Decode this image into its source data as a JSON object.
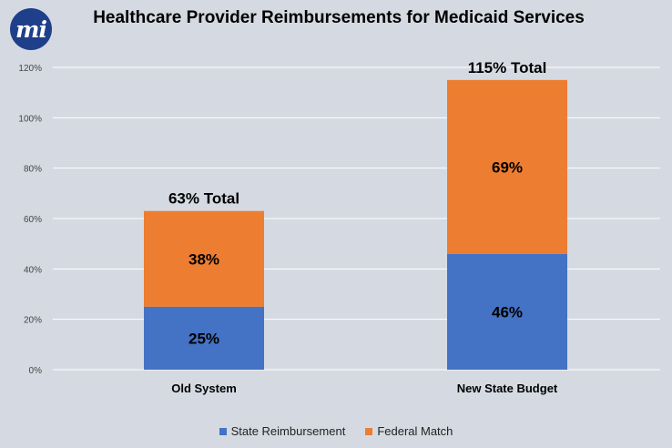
{
  "logo": {
    "text": "mi"
  },
  "chart_data": {
    "type": "bar",
    "stacked": true,
    "title": "Healthcare Provider Reimbursements for Medicaid Services",
    "xlabel": "",
    "ylabel": "",
    "categories": [
      "Old System",
      "New State Budget"
    ],
    "series": [
      {
        "name": "State Reimbursement",
        "values": [
          25,
          46
        ],
        "labels": [
          "25%",
          "46%"
        ],
        "color": "#4472c4"
      },
      {
        "name": "Federal Match",
        "values": [
          38,
          69
        ],
        "labels": [
          "38%",
          "69%"
        ],
        "color": "#ed7d31"
      }
    ],
    "totals": [
      "63% Total",
      "115% Total"
    ],
    "ylim": [
      0,
      120
    ],
    "yticks": [
      0,
      20,
      40,
      60,
      80,
      100,
      120
    ],
    "ytick_labels": [
      "0%",
      "20%",
      "40%",
      "60%",
      "80%",
      "100%",
      "120%"
    ],
    "grid": true,
    "legend_position": "bottom"
  }
}
